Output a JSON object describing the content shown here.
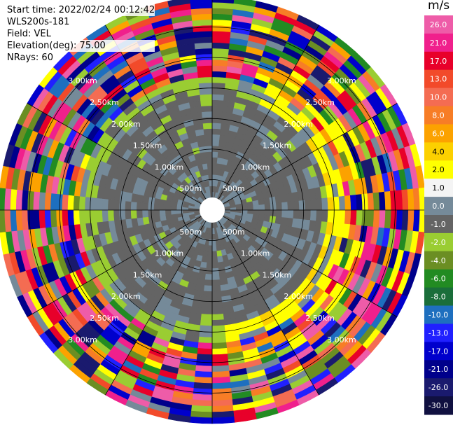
{
  "header": {
    "start_time": "Start time: 2022/02/24 00:12:42",
    "instrument": "WLS200s-181",
    "field": "Field: VEL",
    "elevation": "Elevation(deg): 75.00",
    "nrays": "NRays: 60"
  },
  "colorbar": {
    "unit": "m/s",
    "ticks": [
      "26.0",
      "21.0",
      "17.0",
      "13.0",
      "10.0",
      "8.0",
      "6.0",
      "4.0",
      "2.0",
      "1.0",
      "0.0",
      "-1.0",
      "-2.0",
      "-4.0",
      "-6.0",
      "-8.0",
      "-10.0",
      "-13.0",
      "-17.0",
      "-21.0",
      "-26.0",
      "-30.0"
    ],
    "colors": [
      "#ee5ca8",
      "#f0208c",
      "#e8002a",
      "#f24a2a",
      "#f46c52",
      "#f77d26",
      "#fca200",
      "#fcd000",
      "#ffff00",
      "#f4f4f4",
      "#758a99",
      "#646464",
      "#9acd32",
      "#6b8e23",
      "#228b22",
      "#1a6e3a",
      "#1e6fbf",
      "#2020ff",
      "#0000cc",
      "#00008b",
      "#1a1a6e",
      "#101040"
    ]
  },
  "chart_data": {
    "type": "heatmap",
    "title": "",
    "projection": "polar PPI",
    "field": "VEL",
    "elevation_deg": 75.0,
    "nrays": 60,
    "range_rings": [
      "500m",
      "1.00km",
      "1.50km",
      "2.00km",
      "2.50km",
      "3.00km"
    ],
    "range_ring_values_km": [
      0.5,
      1.0,
      1.5,
      2.0,
      2.5,
      3.0
    ],
    "max_range_km": 3.5,
    "spokes_deg": [
      0,
      30,
      60,
      90,
      120,
      150,
      180,
      210,
      240,
      270,
      300,
      330
    ],
    "description_of_field": "inner region ~0 m/s grey, light-green/yellow transition ring near 2 km, noisy multicolor outer ring 2.5–3.5 km",
    "grid": true
  }
}
